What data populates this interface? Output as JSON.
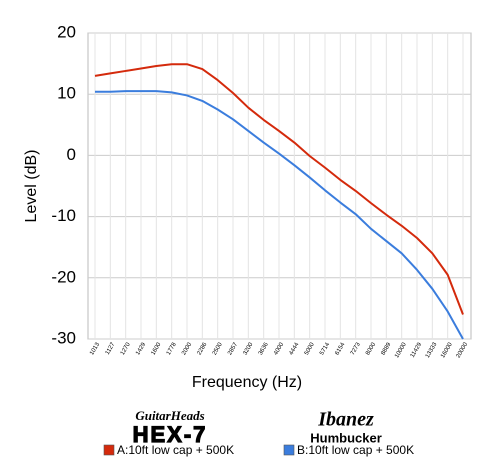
{
  "chart_data": {
    "type": "line",
    "ylabel": "Level (dB)",
    "xlabel": "Frequency (Hz)",
    "categories": [
      "1013",
      "1127",
      "1270",
      "1429",
      "1600",
      "1778",
      "2000",
      "2286",
      "2500",
      "2857",
      "3200",
      "3636",
      "4000",
      "4444",
      "5000",
      "5714",
      "6154",
      "7273",
      "8000",
      "8889",
      "10000",
      "11429",
      "13333",
      "16000",
      "20000"
    ],
    "series": [
      {
        "name": "A:10ft low cap + 500K",
        "color": "#d42a0c",
        "values": [
          13,
          13.4,
          13.8,
          14.2,
          14.6,
          14.9,
          14.9,
          14.1,
          12.3,
          10.2,
          7.8,
          5.8,
          4,
          2.1,
          -0.1,
          -2,
          -4,
          -5.8,
          -7.8,
          -9.7,
          -11.5,
          -13.5,
          -16,
          -19.5,
          -26
        ]
      },
      {
        "name": "B:10ft low cap + 500K",
        "color": "#3b7ddd",
        "values": [
          10.4,
          10.4,
          10.5,
          10.5,
          10.5,
          10.3,
          9.8,
          8.9,
          7.5,
          5.9,
          4,
          2.1,
          0.3,
          -1.6,
          -3.6,
          -5.7,
          -7.7,
          -9.6,
          -12,
          -14,
          -16,
          -18.7,
          -21.8,
          -25.5,
          -30
        ]
      }
    ],
    "ylim": [
      -30,
      20
    ],
    "yticks": [
      -30,
      -20,
      -10,
      0,
      10,
      20
    ],
    "grid": true,
    "logos": [
      {
        "brand": "GuitarHeads",
        "model": "HEX-7"
      },
      {
        "brand": "Ibanez",
        "model": "Humbucker"
      }
    ]
  }
}
